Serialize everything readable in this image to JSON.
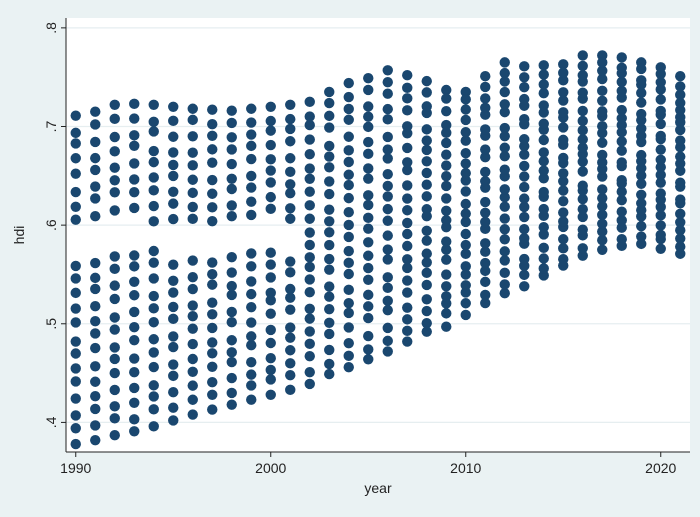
{
  "chart_data": {
    "type": "scatter",
    "xlabel": "year",
    "ylabel": "hdi",
    "xlim": [
      1989.5,
      2021.5
    ],
    "ylim": [
      0.37,
      0.81
    ],
    "x_ticks": [
      1990,
      2000,
      2010,
      2020
    ],
    "x_tick_labels": [
      "1990",
      "2000",
      "2010",
      "2020"
    ],
    "y_ticks": [
      0.4,
      0.5,
      0.6,
      0.7,
      0.8
    ],
    "y_tick_labels": [
      ".4",
      ".5",
      ".6",
      ".7",
      ".8"
    ],
    "grid": "horizontal",
    "marker_color": "#1a476f",
    "plot_background": "#ffffff",
    "outer_background": "#eaf2f3",
    "years": [
      1990,
      1991,
      1992,
      1993,
      1994,
      1995,
      1996,
      1997,
      1998,
      1999,
      2000,
      2001,
      2002,
      2003,
      2004,
      2005,
      2006,
      2007,
      2008,
      2009,
      2010,
      2011,
      2012,
      2013,
      2014,
      2015,
      2016,
      2017,
      2018,
      2019,
      2020,
      2021
    ],
    "hdi_min": [
      0.378,
      0.382,
      0.387,
      0.391,
      0.396,
      0.402,
      0.408,
      0.413,
      0.418,
      0.423,
      0.428,
      0.433,
      0.439,
      0.449,
      0.456,
      0.464,
      0.472,
      0.482,
      0.492,
      0.497,
      0.509,
      0.521,
      0.531,
      0.538,
      0.549,
      0.559,
      0.569,
      0.575,
      0.579,
      0.581,
      0.576,
      0.571
    ],
    "hdi_max": [
      0.711,
      0.715,
      0.722,
      0.723,
      0.722,
      0.72,
      0.718,
      0.717,
      0.716,
      0.718,
      0.72,
      0.722,
      0.725,
      0.735,
      0.744,
      0.749,
      0.757,
      0.752,
      0.746,
      0.737,
      0.735,
      0.751,
      0.765,
      0.761,
      0.762,
      0.763,
      0.772,
      0.772,
      0.77,
      0.765,
      0.76,
      0.751
    ]
  }
}
